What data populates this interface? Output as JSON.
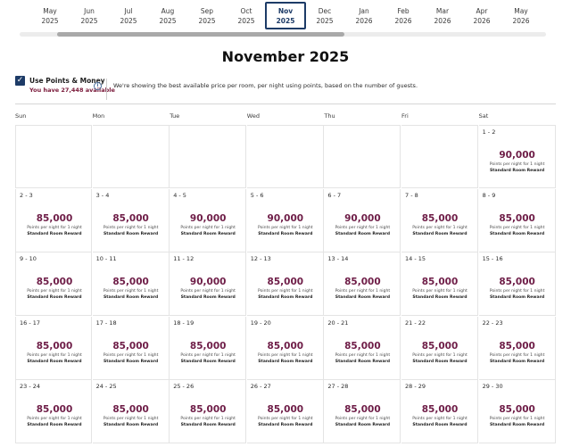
{
  "months": [
    {
      "month": "May",
      "year": "2025"
    },
    {
      "month": "Jun",
      "year": "2025"
    },
    {
      "month": "Jul",
      "year": "2025"
    },
    {
      "month": "Aug",
      "year": "2025"
    },
    {
      "month": "Sep",
      "year": "2025"
    },
    {
      "month": "Oct",
      "year": "2025"
    },
    {
      "month": "Nov",
      "year": "2025",
      "selected": true
    },
    {
      "month": "Dec",
      "year": "2025"
    },
    {
      "month": "Jan",
      "year": "2026"
    },
    {
      "month": "Feb",
      "year": "2026"
    },
    {
      "month": "Mar",
      "year": "2026"
    },
    {
      "month": "Apr",
      "year": "2026"
    },
    {
      "month": "May",
      "year": "2026"
    }
  ],
  "calendar_title": "November 2025",
  "points_toggle": {
    "label": "Use Points & Money",
    "checked": true,
    "available": "You have 27,448 available"
  },
  "info_icon": "info-icon",
  "note": "We're showing the best available price per room, per night using points, based on the number of guests.",
  "weekdays": [
    "Sun",
    "Mon",
    "Tue",
    "Wed",
    "Thu",
    "Fri",
    "Sat"
  ],
  "cell_caption": "Points per night for 1 night",
  "reward_type": "Standard Room Reward",
  "weeks": [
    [
      null,
      null,
      null,
      null,
      null,
      null,
      {
        "dates": "1 - 2",
        "points": "90,000"
      }
    ],
    [
      {
        "dates": "2 - 3",
        "points": "85,000"
      },
      {
        "dates": "3 - 4",
        "points": "85,000"
      },
      {
        "dates": "4 - 5",
        "points": "90,000"
      },
      {
        "dates": "5 - 6",
        "points": "90,000"
      },
      {
        "dates": "6 - 7",
        "points": "90,000"
      },
      {
        "dates": "7 - 8",
        "points": "85,000"
      },
      {
        "dates": "8 - 9",
        "points": "85,000"
      }
    ],
    [
      {
        "dates": "9 - 10",
        "points": "85,000"
      },
      {
        "dates": "10 - 11",
        "points": "85,000"
      },
      {
        "dates": "11 - 12",
        "points": "90,000"
      },
      {
        "dates": "12 - 13",
        "points": "85,000"
      },
      {
        "dates": "13 - 14",
        "points": "85,000"
      },
      {
        "dates": "14 - 15",
        "points": "85,000"
      },
      {
        "dates": "15 - 16",
        "points": "85,000"
      }
    ],
    [
      {
        "dates": "16 - 17",
        "points": "85,000"
      },
      {
        "dates": "17 - 18",
        "points": "85,000"
      },
      {
        "dates": "18 - 19",
        "points": "85,000"
      },
      {
        "dates": "19 - 20",
        "points": "85,000"
      },
      {
        "dates": "20 - 21",
        "points": "85,000"
      },
      {
        "dates": "21 - 22",
        "points": "85,000"
      },
      {
        "dates": "22 - 23",
        "points": "85,000"
      }
    ],
    [
      {
        "dates": "23 - 24",
        "points": "85,000"
      },
      {
        "dates": "24 - 25",
        "points": "85,000"
      },
      {
        "dates": "25 - 26",
        "points": "85,000"
      },
      {
        "dates": "26 - 27",
        "points": "85,000"
      },
      {
        "dates": "27 - 28",
        "points": "85,000"
      },
      {
        "dates": "28 - 29",
        "points": "85,000"
      },
      {
        "dates": "29 - 30",
        "points": "85,000"
      }
    ]
  ]
}
